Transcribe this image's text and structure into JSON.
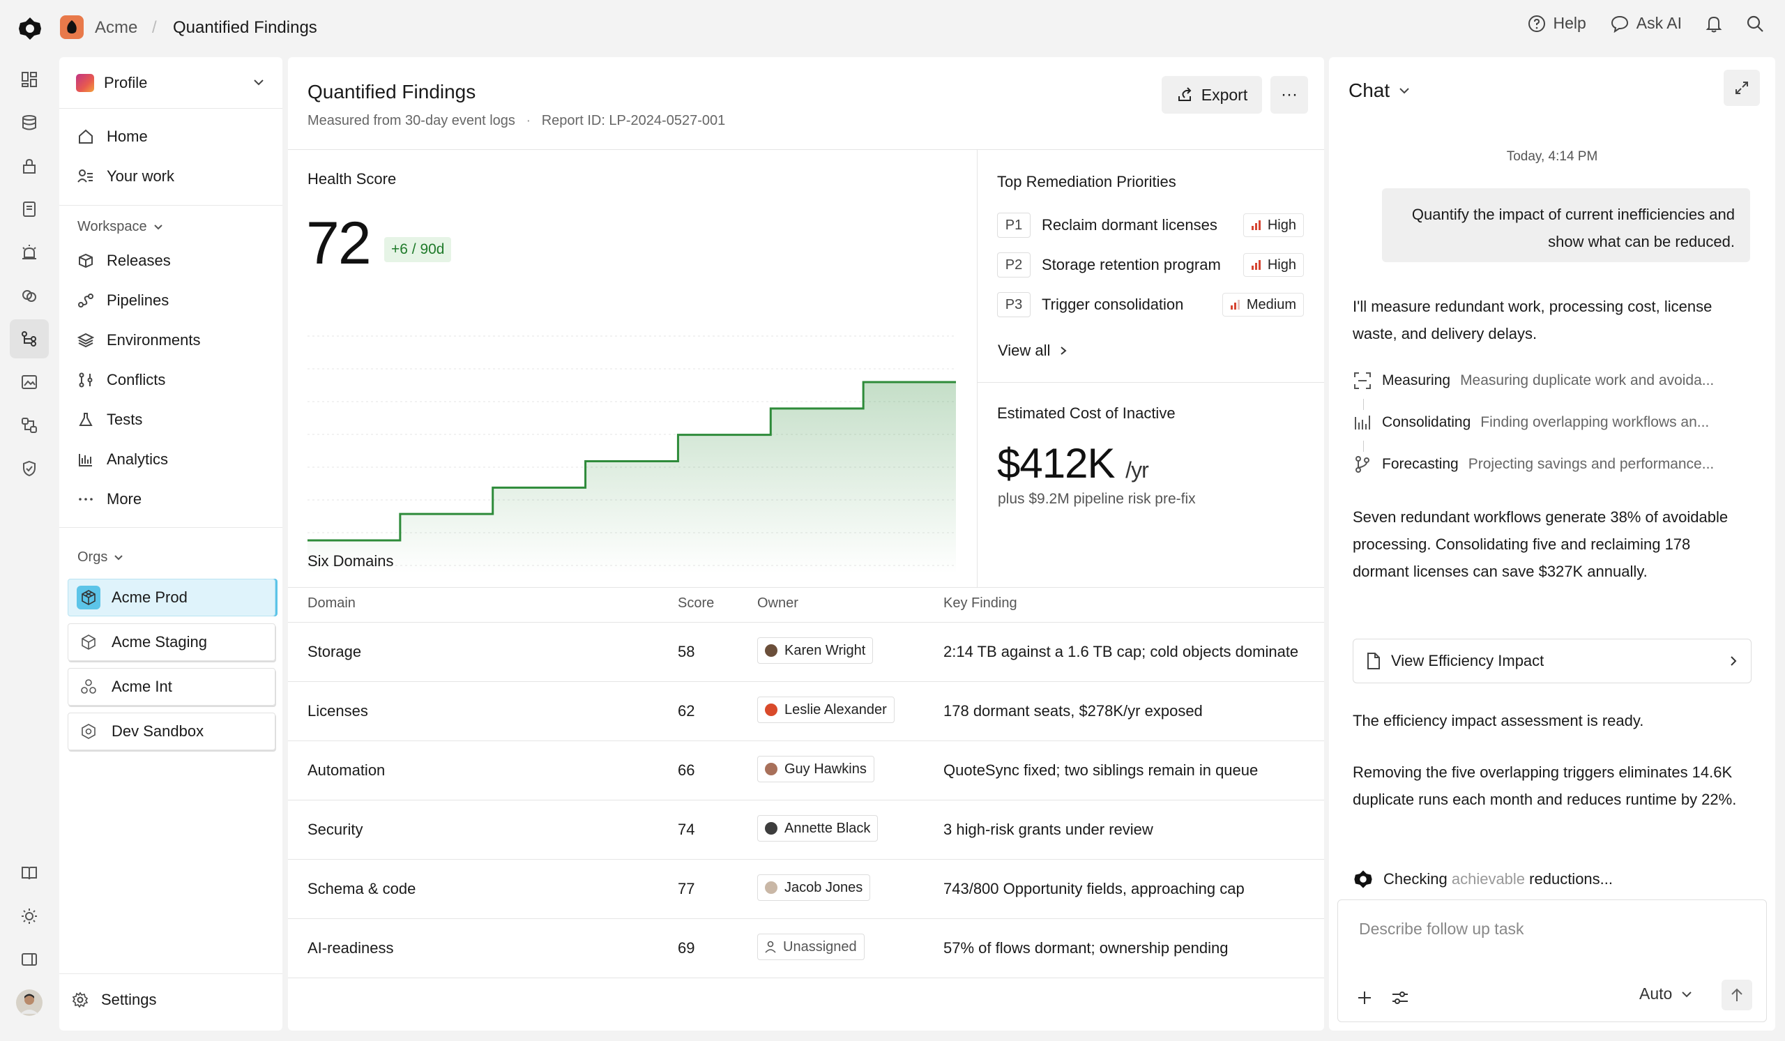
{
  "breadcrumb": {
    "org": "Acme",
    "separator": "/",
    "page": "Quantified Findings"
  },
  "topbar": {
    "help": "Help",
    "ask_ai": "Ask AI"
  },
  "sidebar": {
    "profile": "Profile",
    "nav": [
      {
        "label": "Home",
        "icon": "home-icon"
      },
      {
        "label": "Your work",
        "icon": "user-list-icon"
      }
    ],
    "workspace_label": "Workspace",
    "workspace": [
      {
        "label": "Releases",
        "icon": "box-icon"
      },
      {
        "label": "Pipelines",
        "icon": "pipeline-icon"
      },
      {
        "label": "Environments",
        "icon": "layers-icon"
      },
      {
        "label": "Conflicts",
        "icon": "merge-icon"
      },
      {
        "label": "Tests",
        "icon": "flask-icon"
      },
      {
        "label": "Analytics",
        "icon": "bar-chart-icon"
      },
      {
        "label": "More",
        "icon": "dots-icon"
      }
    ],
    "orgs_label": "Orgs",
    "orgs": [
      {
        "label": "Acme Prod",
        "active": true
      },
      {
        "label": "Acme Staging",
        "active": false
      },
      {
        "label": "Acme Int",
        "active": false
      },
      {
        "label": "Dev Sandbox",
        "active": false
      }
    ],
    "settings": "Settings"
  },
  "main": {
    "title": "Quantified Findings",
    "subtitle": "Measured from 30-day event logs",
    "subtitle_sep": "·",
    "report_id": "Report ID: LP-2024-0527-001",
    "export": "Export",
    "more": "···",
    "health": {
      "label": "Health Score",
      "score": "72",
      "delta": "+6 / 90d"
    },
    "priorities": {
      "label": "Top Remediation Priorities",
      "items": [
        {
          "tag": "P1",
          "text": "Reclaim dormant licenses",
          "level": "High"
        },
        {
          "tag": "P2",
          "text": "Storage retention program",
          "level": "High"
        },
        {
          "tag": "P3",
          "text": "Trigger consolidation",
          "level": "Medium"
        }
      ],
      "view_all": "View all"
    },
    "cost": {
      "label": "Estimated Cost of  Inactive",
      "value": "$412K",
      "unit": "/yr",
      "note": "plus $9.2M pipeline risk pre-fix"
    },
    "domains": {
      "label": "Six Domains",
      "headers": [
        "Domain",
        "Score",
        "Owner",
        "Key Finding"
      ],
      "rows": [
        {
          "domain": "Storage",
          "score": "58",
          "owner": "Karen Wright",
          "avatar": "#6b4f3a",
          "finding": "2:14 TB against a 1.6 TB cap; cold objects dominate"
        },
        {
          "domain": "Licenses",
          "score": "62",
          "owner": "Leslie Alexander",
          "avatar": "#d94a2b",
          "finding": "178 dormant seats, $278K/yr exposed"
        },
        {
          "domain": "Automation",
          "score": "66",
          "owner": "Guy Hawkins",
          "avatar": "#a8705a",
          "finding": "QuoteSync fixed; two siblings remain in queue"
        },
        {
          "domain": "Security",
          "score": "74",
          "owner": "Annette Black",
          "avatar": "#3d3d3d",
          "finding": "3 high-risk grants under review"
        },
        {
          "domain": "Schema & code",
          "score": "77",
          "owner": "Jacob Jones",
          "avatar": "#c9b7a6",
          "finding": "743/800 Opportunity fields, approaching cap"
        },
        {
          "domain": "AI-readiness",
          "score": "69",
          "owner": "Unassigned",
          "avatar": "",
          "finding": "57% of flows dormant; ownership pending"
        }
      ]
    }
  },
  "chart_data": {
    "type": "line",
    "series": [
      {
        "values": [
          0,
          1,
          2,
          3,
          4,
          5,
          6
        ]
      }
    ],
    "style": "step",
    "color": "#2e8b3a"
  },
  "chat": {
    "title": "Chat",
    "time": "Today, 4:14 PM",
    "user_msg": "Quantify the impact of current inefficiencies and show what can be reduced.",
    "intro": "I'll measure redundant work, processing cost, license waste, and delivery delays.",
    "steps": [
      {
        "name": "Measuring",
        "desc": "Measuring duplicate work and avoida...",
        "icon": "scan-icon"
      },
      {
        "name": "Consolidating",
        "desc": "Finding overlapping workflows an...",
        "icon": "bars-icon"
      },
      {
        "name": "Forecasting",
        "desc": "Projecting savings and performance...",
        "icon": "branch-icon"
      }
    ],
    "summary": "Seven redundant workflows generate 38% of avoidable processing. Consolidating five and reclaiming 178 dormant licenses can save $327K annually.",
    "impact_button": "View Efficiency Impact",
    "ready": "The efficiency impact assessment is ready.",
    "detail": "Removing the five overlapping triggers eliminates 14.6K duplicate runs each month and reduces runtime by 22%.",
    "checking_prefix": "Checking",
    "checking_faded": "achievable",
    "checking_suffix": "reductions...",
    "composer_placeholder": "Describe follow up task",
    "mode": "Auto"
  }
}
